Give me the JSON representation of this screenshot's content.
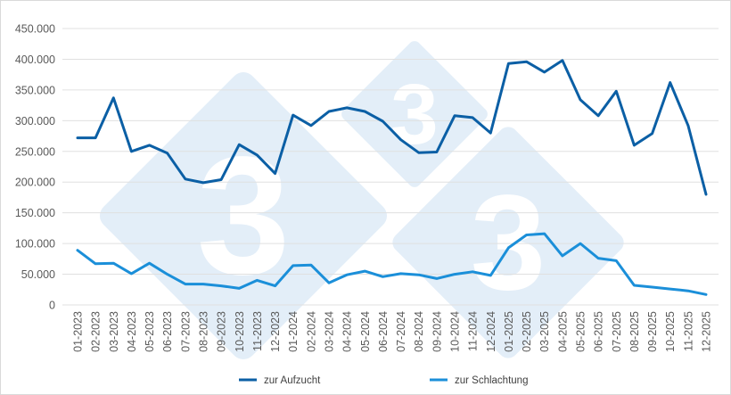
{
  "chart_data": {
    "type": "line",
    "title": "",
    "xlabel": "",
    "ylabel": "",
    "ylim": [
      0,
      450000
    ],
    "yticks": [
      "0",
      "50.000",
      "100.000",
      "150.000",
      "200.000",
      "250.000",
      "300.000",
      "350.000",
      "400.000",
      "450.000"
    ],
    "grid": true,
    "legend_position": "bottom",
    "categories": [
      "01-2023",
      "02-2023",
      "03-2023",
      "04-2023",
      "05-2023",
      "06-2023",
      "07-2023",
      "08-2023",
      "09-2023",
      "10-2023",
      "11-2023",
      "12-2023",
      "01-2024",
      "02-2024",
      "03-2024",
      "04-2024",
      "05-2024",
      "06-2024",
      "07-2024",
      "08-2024",
      "09-2024",
      "10-2024",
      "11-2024",
      "12-2024",
      "01-2025",
      "02-2025",
      "03-2025",
      "04-2025",
      "05-2025",
      "06-2025",
      "07-2025",
      "08-2025",
      "09-2025",
      "10-2025",
      "11-2025",
      "12-2025"
    ],
    "series": [
      {
        "name": "zur Aufzucht",
        "color": "#0b5fa5",
        "values": [
          272000,
          272000,
          337000,
          250000,
          260000,
          247000,
          205000,
          199000,
          204000,
          261000,
          244000,
          214000,
          309000,
          292000,
          315000,
          321000,
          315000,
          299000,
          269000,
          248000,
          249000,
          308000,
          305000,
          280000,
          393000,
          396000,
          379000,
          398000,
          334000,
          308000,
          348000,
          260000,
          279000,
          362000,
          292000,
          180000
        ]
      },
      {
        "name": "zur Schlachtung",
        "color": "#1b8fd9",
        "values": [
          89000,
          67000,
          68000,
          51000,
          68000,
          50000,
          34000,
          34000,
          31000,
          27000,
          40000,
          31000,
          64000,
          65000,
          36000,
          49000,
          55000,
          46000,
          51000,
          49000,
          43000,
          50000,
          54000,
          48000,
          93000,
          114000,
          116000,
          80000,
          100000,
          76000,
          72000,
          32000,
          29000,
          26000,
          23000,
          17000
        ]
      }
    ]
  },
  "watermark": {
    "text": "3",
    "color": "#e3eef8"
  }
}
